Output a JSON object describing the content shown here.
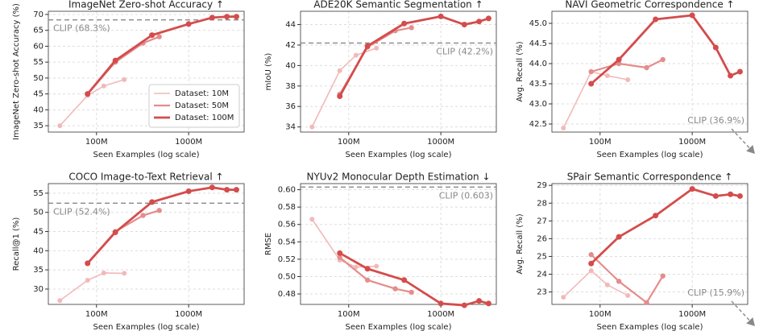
{
  "chart_data": [
    {
      "type": "line",
      "title": "ImageNet Zero-shot Accuracy ↑",
      "xlabel": "Seen Examples (log scale)",
      "ylabel": "ImageNet Zero-shot Accuracy (%)",
      "xscale": "log",
      "xlim": [
        30,
        4000
      ],
      "xticks": [
        {
          "value": 100,
          "label": "100M"
        },
        {
          "value": 1000,
          "label": "1000M"
        }
      ],
      "ylim": [
        33,
        71
      ],
      "yticks": [
        35,
        40,
        45,
        50,
        55,
        60,
        65,
        70
      ],
      "grid": true,
      "legend": "lower right",
      "clip": {
        "value": 68.3,
        "label": "CLIP (68.3%)"
      },
      "series": [
        {
          "name": "Dataset: 10M",
          "color": "#f2b9b9",
          "x": [
            40,
            80,
            120,
            200
          ],
          "values": [
            35,
            44.5,
            47.5,
            49.5
          ]
        },
        {
          "name": "Dataset: 50M",
          "color": "#e58c8c",
          "x": [
            80,
            160,
            320,
            480
          ],
          "values": [
            45,
            55,
            61,
            63
          ]
        },
        {
          "name": "Dataset: 100M",
          "color": "#d44c4c",
          "x": [
            80,
            160,
            400,
            1000,
            1800,
            2600,
            3300
          ],
          "values": [
            45,
            55.5,
            63.5,
            67,
            69,
            69.3,
            69.3
          ]
        }
      ]
    },
    {
      "type": "line",
      "title": "ADE20K Semantic Segmentation ↑",
      "xlabel": "Seen Examples (log scale)",
      "ylabel": "mIoU (%)",
      "xscale": "log",
      "xlim": [
        30,
        4000
      ],
      "xticks": [
        {
          "value": 100,
          "label": "100M"
        },
        {
          "value": 1000,
          "label": "1000M"
        }
      ],
      "ylim": [
        33.5,
        45.3
      ],
      "yticks": [
        34,
        36,
        38,
        40,
        42,
        44
      ],
      "grid": true,
      "clip": {
        "value": 42.2,
        "label": "CLIP (42.2%)"
      },
      "series": [
        {
          "name": "Dataset: 10M",
          "color": "#f2b9b9",
          "x": [
            40,
            80,
            120,
            200
          ],
          "values": [
            34,
            39.5,
            41,
            41.7
          ]
        },
        {
          "name": "Dataset: 50M",
          "color": "#e58c8c",
          "x": [
            80,
            160,
            320,
            480
          ],
          "values": [
            37.2,
            41.8,
            43.4,
            43.7
          ]
        },
        {
          "name": "Dataset: 100M",
          "color": "#d44c4c",
          "x": [
            80,
            160,
            400,
            1000,
            1800,
            2600,
            3300
          ],
          "values": [
            37,
            41.9,
            44.1,
            44.8,
            44,
            44.3,
            44.6
          ]
        }
      ]
    },
    {
      "type": "line",
      "title": "NAVI Geometric Correspondence ↑",
      "xlabel": "Seen Examples (log scale)",
      "ylabel": "Avg. Recall (%)",
      "xscale": "log",
      "xlim": [
        30,
        4000
      ],
      "xticks": [
        {
          "value": 100,
          "label": "100M"
        },
        {
          "value": 1000,
          "label": "1000M"
        }
      ],
      "ylim": [
        42.3,
        45.3
      ],
      "yticks": [
        42.5,
        {
          "value": 43,
          "label": "43.0"
        },
        43.5,
        {
          "value": 44,
          "label": "44.0"
        },
        44.5,
        {
          "value": 45,
          "label": "45.0"
        }
      ],
      "grid": true,
      "clip": {
        "value": 36.9,
        "label": "CLIP (36.9%)"
      },
      "series": [
        {
          "name": "Dataset: 10M",
          "color": "#f2b9b9",
          "x": [
            40,
            80,
            120,
            200
          ],
          "values": [
            42.4,
            43.8,
            43.7,
            43.6
          ]
        },
        {
          "name": "Dataset: 50M",
          "color": "#e58c8c",
          "x": [
            80,
            160,
            320,
            480
          ],
          "values": [
            43.8,
            44,
            43.9,
            44.1
          ]
        },
        {
          "name": "Dataset: 100M",
          "color": "#d44c4c",
          "x": [
            80,
            160,
            400,
            1000,
            1800,
            2600,
            3300
          ],
          "values": [
            43.5,
            44.1,
            45.1,
            45.2,
            44.4,
            43.7,
            43.8
          ]
        }
      ]
    },
    {
      "type": "line",
      "title": "COCO Image-to-Text Retrieval ↑",
      "xlabel": "Seen Examples (log scale)",
      "ylabel": "Recall@1 (%)",
      "xscale": "log",
      "xlim": [
        30,
        4000
      ],
      "xticks": [
        {
          "value": 100,
          "label": "100M"
        },
        {
          "value": 1000,
          "label": "1000M"
        }
      ],
      "ylim": [
        26,
        57.5
      ],
      "yticks": [
        30,
        35,
        40,
        45,
        50,
        55
      ],
      "grid": true,
      "clip": {
        "value": 52.4,
        "label": "CLIP (52.4%)"
      },
      "series": [
        {
          "name": "Dataset: 10M",
          "color": "#f2b9b9",
          "x": [
            40,
            80,
            120,
            200
          ],
          "values": [
            27,
            32.3,
            34.2,
            34.1
          ]
        },
        {
          "name": "Dataset: 50M",
          "color": "#e58c8c",
          "x": [
            80,
            160,
            320,
            480
          ],
          "values": [
            36.8,
            45,
            49.2,
            50.5
          ]
        },
        {
          "name": "Dataset: 100M",
          "color": "#d44c4c",
          "x": [
            80,
            160,
            400,
            1000,
            1800,
            2600,
            3300
          ],
          "values": [
            36.7,
            44.8,
            52.7,
            55.5,
            56.5,
            55.9,
            55.9
          ]
        }
      ]
    },
    {
      "type": "line",
      "title": "NYUv2 Monocular Depth Estimation ↓",
      "xlabel": "Seen Examples (log scale)",
      "ylabel": "RMSE",
      "xscale": "log",
      "xlim": [
        30,
        4000
      ],
      "xticks": [
        {
          "value": 100,
          "label": "100M"
        },
        {
          "value": 1000,
          "label": "1000M"
        }
      ],
      "ylim": [
        0.468,
        0.607
      ],
      "yticks": [
        0.48,
        {
          "value": 0.5,
          "label": "0.50"
        },
        0.52,
        0.54,
        0.56,
        0.58,
        {
          "value": 0.6,
          "label": "0.60"
        }
      ],
      "grid": true,
      "clip": {
        "value": 0.603,
        "label": "CLIP (0.603)"
      },
      "series": [
        {
          "name": "Dataset: 10M",
          "color": "#f2b9b9",
          "x": [
            40,
            80,
            120,
            200
          ],
          "values": [
            0.566,
            0.519,
            0.511,
            0.512
          ]
        },
        {
          "name": "Dataset: 50M",
          "color": "#e58c8c",
          "x": [
            80,
            160,
            320,
            480
          ],
          "values": [
            0.522,
            0.496,
            0.486,
            0.482
          ]
        },
        {
          "name": "Dataset: 100M",
          "color": "#d44c4c",
          "x": [
            80,
            160,
            400,
            1000,
            1800,
            2600,
            3300
          ],
          "values": [
            0.527,
            0.509,
            0.496,
            0.469,
            0.467,
            0.472,
            0.469
          ]
        }
      ]
    },
    {
      "type": "line",
      "title": "SPair Semantic Correspondence ↑",
      "xlabel": "Seen Examples (log scale)",
      "ylabel": "Avg. Recall (%)",
      "xscale": "log",
      "xlim": [
        30,
        4000
      ],
      "xticks": [
        {
          "value": 100,
          "label": "100M"
        },
        {
          "value": 1000,
          "label": "1000M"
        }
      ],
      "ylim": [
        22.3,
        29.1
      ],
      "yticks": [
        23,
        24,
        25,
        26,
        27,
        28,
        29
      ],
      "grid": true,
      "clip": {
        "value": 15.9,
        "label": "CLIP (15.9%)"
      },
      "series": [
        {
          "name": "Dataset: 10M",
          "color": "#f2b9b9",
          "x": [
            40,
            80,
            120,
            200
          ],
          "values": [
            22.7,
            24.2,
            23.4,
            22.8
          ]
        },
        {
          "name": "Dataset: 50M",
          "color": "#e58c8c",
          "x": [
            80,
            160,
            320,
            480
          ],
          "values": [
            25.1,
            23.6,
            22.4,
            23.9
          ]
        },
        {
          "name": "Dataset: 100M",
          "color": "#d44c4c",
          "x": [
            80,
            160,
            400,
            1000,
            1800,
            2600,
            3300
          ],
          "values": [
            24.6,
            26.1,
            27.3,
            28.8,
            28.4,
            28.5,
            28.4
          ]
        }
      ]
    }
  ]
}
